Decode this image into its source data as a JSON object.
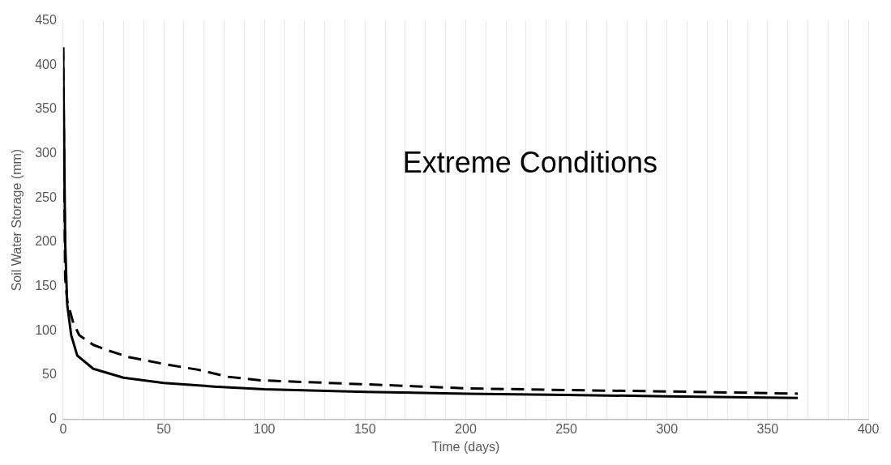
{
  "chart_data": {
    "type": "line",
    "title": "Extreme Conditions",
    "xlabel": "Time (days)",
    "ylabel": "Soil Water Storage (mm)",
    "series": [
      {
        "color": "#000000",
        "line_style": "solid",
        "x": [
          0,
          1,
          2,
          4,
          7,
          15,
          30,
          50,
          75,
          100,
          150,
          200,
          250,
          300,
          365
        ],
        "values": [
          420,
          200,
          130,
          95,
          72,
          57,
          47,
          41,
          37,
          34,
          31,
          29,
          27.5,
          26,
          24
        ]
      },
      {
        "color": "#000000",
        "line_style": "dashed",
        "x": [
          0,
          1,
          2,
          5,
          8,
          15,
          22,
          33,
          51,
          67,
          82,
          98,
          150,
          200,
          250,
          300,
          365
        ],
        "values": [
          420,
          160,
          134,
          109,
          95,
          84,
          78,
          70,
          62,
          56,
          48,
          44,
          39.5,
          35,
          33,
          31.5,
          29
        ]
      }
    ],
    "xlim": [
      0,
      400
    ],
    "xticks": [
      0,
      {
        "value": 10,
        "label": null
      },
      {
        "value": 20,
        "label": null
      },
      {
        "value": 30,
        "label": null
      },
      {
        "value": 40,
        "label": null
      },
      50,
      {
        "value": 60,
        "label": null
      },
      {
        "value": 70,
        "label": null
      },
      {
        "value": 80,
        "label": null
      },
      {
        "value": 90,
        "label": null
      },
      100,
      {
        "value": 110,
        "label": null
      },
      {
        "value": 120,
        "label": null
      },
      {
        "value": 130,
        "label": null
      },
      {
        "value": 140,
        "label": null
      },
      150,
      {
        "value": 160,
        "label": null
      },
      {
        "value": 170,
        "label": null
      },
      {
        "value": 180,
        "label": null
      },
      {
        "value": 190,
        "label": null
      },
      200,
      {
        "value": 210,
        "label": null
      },
      {
        "value": 220,
        "label": null
      },
      {
        "value": 230,
        "label": null
      },
      {
        "value": 240,
        "label": null
      },
      250,
      {
        "value": 260,
        "label": null
      },
      {
        "value": 270,
        "label": null
      },
      {
        "value": 280,
        "label": null
      },
      {
        "value": 290,
        "label": null
      },
      300,
      {
        "value": 310,
        "label": null
      },
      {
        "value": 320,
        "label": null
      },
      {
        "value": 330,
        "label": null
      },
      {
        "value": 340,
        "label": null
      },
      350,
      {
        "value": 360,
        "label": null
      },
      {
        "value": 370,
        "label": null
      },
      {
        "value": 380,
        "label": null
      },
      {
        "value": 390,
        "label": null
      },
      400
    ],
    "ylim": [
      0,
      450
    ],
    "yticks": [
      0,
      50,
      100,
      150,
      200,
      250,
      300,
      350,
      400,
      450
    ],
    "grid": "x",
    "legend": false,
    "marker": "none"
  }
}
